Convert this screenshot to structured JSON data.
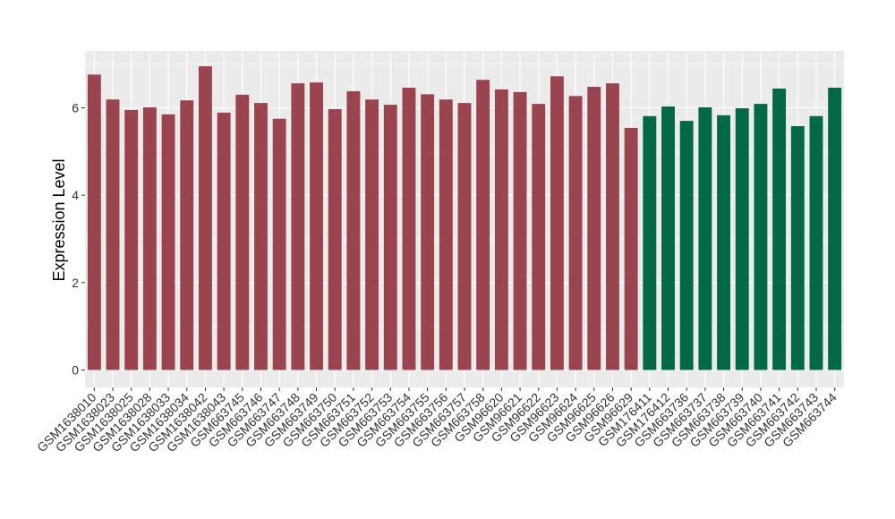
{
  "chart_data": {
    "type": "bar",
    "title": "",
    "xlabel": "",
    "ylabel": "Expression Level",
    "ylim": [
      -0.4,
      7.3
    ],
    "yticks": [
      0,
      2,
      4,
      6
    ],
    "grid": true,
    "panel_background": "#ebebeb",
    "categories": [
      "GSM1638010",
      "GSM1638023",
      "GSM1638025",
      "GSM1638028",
      "GSM1638033",
      "GSM1638034",
      "GSM1638042",
      "GSM1638043",
      "GSM663745",
      "GSM663746",
      "GSM663747",
      "GSM663748",
      "GSM663749",
      "GSM663750",
      "GSM663751",
      "GSM663752",
      "GSM663753",
      "GSM663754",
      "GSM663755",
      "GSM663756",
      "GSM663757",
      "GSM663758",
      "GSM96620",
      "GSM96621",
      "GSM96622",
      "GSM96623",
      "GSM96624",
      "GSM96625",
      "GSM96626",
      "GSM96629",
      "GSM176411",
      "GSM176412",
      "GSM663736",
      "GSM663737",
      "GSM663738",
      "GSM663739",
      "GSM663740",
      "GSM663741",
      "GSM663742",
      "GSM663743",
      "GSM663744"
    ],
    "values": [
      6.76,
      6.19,
      5.95,
      6.01,
      5.85,
      6.17,
      6.95,
      5.89,
      6.3,
      6.11,
      5.75,
      6.56,
      6.58,
      5.97,
      6.38,
      6.19,
      6.07,
      6.46,
      6.31,
      6.19,
      6.11,
      6.64,
      6.42,
      6.36,
      6.09,
      6.72,
      6.27,
      6.48,
      6.56,
      5.54,
      5.81,
      6.03,
      5.7,
      6.01,
      5.83,
      5.99,
      6.09,
      6.44,
      5.58,
      5.81,
      6.46
    ],
    "groups": [
      "a",
      "a",
      "a",
      "a",
      "a",
      "a",
      "a",
      "a",
      "a",
      "a",
      "a",
      "a",
      "a",
      "a",
      "a",
      "a",
      "a",
      "a",
      "a",
      "a",
      "a",
      "a",
      "a",
      "a",
      "a",
      "a",
      "a",
      "a",
      "a",
      "a",
      "b",
      "b",
      "b",
      "b",
      "b",
      "b",
      "b",
      "b",
      "b",
      "b",
      "b"
    ],
    "colors": {
      "a": "#9a4450",
      "b": "#036845"
    }
  }
}
